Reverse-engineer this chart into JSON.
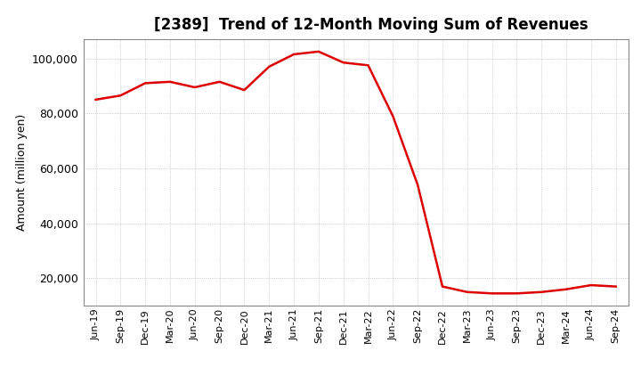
{
  "title": "[2389]  Trend of 12-Month Moving Sum of Revenues",
  "ylabel": "Amount (million yen)",
  "line_color": "#dd0000",
  "line_width": 1.8,
  "background_color": "#ffffff",
  "grid_color": "#999999",
  "ylim": [
    10000,
    107000
  ],
  "yticks": [
    20000,
    40000,
    60000,
    80000,
    100000
  ],
  "labels": [
    "Jun-19",
    "Sep-19",
    "Dec-19",
    "Mar-20",
    "Jun-20",
    "Sep-20",
    "Dec-20",
    "Mar-21",
    "Jun-21",
    "Sep-21",
    "Dec-21",
    "Mar-22",
    "Jun-22",
    "Sep-22",
    "Dec-22",
    "Mar-23",
    "Jun-23",
    "Sep-23",
    "Dec-23",
    "Mar-24",
    "Jun-24",
    "Sep-24"
  ],
  "values": [
    85000,
    86500,
    91000,
    91500,
    89500,
    91500,
    88500,
    97000,
    101500,
    102500,
    98500,
    97500,
    79000,
    54000,
    17000,
    15000,
    14500,
    14500,
    15000,
    16000,
    17500,
    17000
  ],
  "title_fontsize": 12,
  "ylabel_fontsize": 9,
  "tick_fontsize": 8
}
